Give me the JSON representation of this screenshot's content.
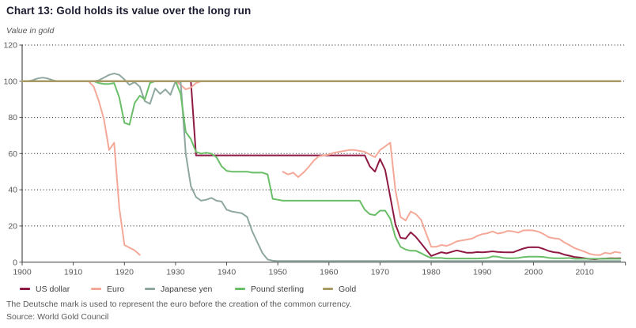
{
  "header": {
    "title": "Chart 13: Gold holds its value over the long run",
    "unit_label": "Value in gold"
  },
  "footnotes": {
    "note": "The Deutsche mark is used to represent the euro before the creation of the common currency.",
    "source": "Source: World Gold Council"
  },
  "chart_data": {
    "type": "line",
    "title": "Chart 13: Gold holds its value over the long run",
    "ylabel": "Value in gold",
    "xlabel": "",
    "x_start": 1900,
    "x_end": 2017,
    "axis_end_year": 2018,
    "xticks": [
      1900,
      1910,
      1920,
      1930,
      1940,
      1950,
      1960,
      1970,
      1980,
      1990,
      2000,
      2010
    ],
    "ylim": [
      0,
      120
    ],
    "ytick_step": 20,
    "grid": "dotted-horizontal",
    "legend_position": "bottom",
    "axis_color": "#4d4d4d",
    "grid_color": "#1a1a1a",
    "tick_label_color": "#595959",
    "series": [
      {
        "name": "US dollar",
        "color": "#8e1944",
        "width": 2,
        "values": [
          100,
          100,
          100,
          100,
          100,
          100,
          100,
          100,
          100,
          100,
          100,
          100,
          100,
          100,
          100,
          100,
          100,
          100,
          100,
          100,
          100,
          100,
          100,
          100,
          100,
          100,
          100,
          100,
          100,
          100,
          100,
          100,
          100,
          100,
          59,
          59,
          59,
          59,
          59,
          59,
          59,
          59,
          59,
          59,
          59,
          59,
          59,
          59,
          59,
          59,
          59,
          59,
          59,
          59,
          59,
          59,
          59,
          59,
          59,
          59,
          59,
          59,
          59,
          59,
          59,
          59,
          59,
          59,
          53,
          50,
          57,
          51,
          36,
          21,
          13.5,
          13,
          16.5,
          14,
          10.5,
          7,
          3.4,
          4.5,
          5.5,
          4.9,
          5.7,
          6.5,
          5.8,
          5.2,
          5.2,
          5.6,
          5.4,
          5.7,
          6,
          5.7,
          5.5,
          5.4,
          5.4,
          6.5,
          7.5,
          8.2,
          8.3,
          8.2,
          7.3,
          6.2,
          5.5,
          5.2,
          4.2,
          3.6,
          2.9,
          2.6,
          2.2,
          1.8,
          1.6,
          1.9,
          2,
          2.2,
          2.1,
          2.2
        ]
      },
      {
        "name": "Euro",
        "color": "#f4a898",
        "width": 2,
        "values": [
          100,
          100,
          100,
          100,
          100,
          100,
          100,
          100,
          100,
          100,
          100,
          100,
          100,
          100,
          97,
          89,
          79,
          62,
          66,
          30,
          9.5,
          8,
          6.5,
          4,
          null,
          null,
          100,
          100,
          100,
          100,
          100,
          98,
          95.5,
          96.5,
          99,
          100,
          100,
          100,
          100,
          100,
          100,
          100,
          100,
          100,
          null,
          null,
          null,
          null,
          null,
          null,
          null,
          50,
          48.5,
          49.5,
          47,
          49.5,
          52.5,
          56,
          58.5,
          59,
          59.5,
          60.5,
          61,
          61.5,
          62,
          62,
          61.5,
          61,
          59.5,
          58,
          62,
          64,
          66,
          40,
          25,
          23,
          28,
          26.5,
          23.5,
          16,
          8.5,
          8.5,
          9.5,
          9,
          10,
          11.5,
          12,
          12.5,
          13,
          14.5,
          15.5,
          16,
          17,
          15.8,
          16.3,
          17.3,
          17,
          16.3,
          17.5,
          17.7,
          17.5,
          16.8,
          15.5,
          13.8,
          13.2,
          12.9,
          11,
          9.5,
          7.8,
          6.8,
          5.8,
          4.6,
          4,
          3.9,
          5.2,
          4.7,
          5.7,
          5.2
        ]
      },
      {
        "name": "Japanese yen",
        "color": "#8ea7a1",
        "width": 2,
        "values": [
          100,
          100,
          100.5,
          101.5,
          102,
          101.5,
          100.5,
          100,
          100,
          100,
          100,
          100,
          100,
          100,
          100,
          100.5,
          102,
          103.5,
          104.3,
          103.5,
          101,
          98,
          99.5,
          97,
          89,
          87.5,
          96,
          93,
          95.5,
          92.5,
          100,
          99.5,
          60,
          42,
          36,
          34,
          34.5,
          35.5,
          34,
          33.5,
          29,
          28,
          27.5,
          27,
          25,
          17,
          11,
          5,
          1.5,
          0.8,
          0.6,
          0.6,
          0.6,
          0.6,
          0.6,
          0.6,
          0.6,
          0.6,
          0.6,
          0.6,
          0.6,
          0.6,
          0.6,
          0.6,
          0.6,
          0.6,
          0.6,
          0.6,
          0.6,
          0.6,
          0.6,
          0.6,
          0.6,
          0.6,
          0.6,
          0.6,
          0.6,
          0.6,
          0.6,
          0.6,
          0.6,
          0.6,
          0.6,
          0.6,
          0.6,
          0.6,
          0.6,
          0.6,
          0.6,
          0.6,
          0.6,
          0.6,
          0.6,
          0.6,
          0.6,
          0.6,
          0.6,
          0.6,
          0.6,
          0.6,
          0.6,
          0.6,
          0.6,
          0.6,
          0.6,
          0.6,
          0.6,
          0.6,
          0.6,
          0.6,
          0.6,
          0.6,
          0.6,
          0.6,
          0.6,
          0.6,
          0.6,
          0.6
        ]
      },
      {
        "name": "Pound sterling",
        "color": "#69be67",
        "width": 2,
        "values": [
          100,
          100,
          100,
          100,
          100,
          100,
          100,
          100,
          100,
          100,
          100,
          100,
          100,
          100,
          100,
          99,
          98.5,
          98.5,
          99,
          91,
          77,
          76,
          88,
          92,
          90,
          99,
          100,
          100,
          100,
          100,
          100,
          93,
          72,
          68,
          61,
          60,
          60.5,
          60,
          58,
          53,
          50.5,
          50,
          50,
          50,
          50,
          49.5,
          49.5,
          49.5,
          48.5,
          35,
          34.5,
          34,
          34,
          34,
          34,
          34,
          34,
          34,
          34,
          34,
          34,
          34,
          34,
          34,
          34,
          34,
          34,
          29,
          26.5,
          26,
          28.5,
          28.5,
          24,
          14,
          8.5,
          7,
          6.3,
          6.3,
          5,
          3.5,
          2.3,
          2.3,
          2.3,
          2,
          2,
          2,
          2,
          2,
          2,
          2,
          2.2,
          2.3,
          3.2,
          3,
          2.4,
          2.2,
          2.2,
          2.3,
          2.8,
          3,
          3,
          3,
          2.9,
          2.4,
          2.2,
          2.2,
          2.2,
          2.3,
          1.9,
          1.9,
          1.9,
          1.9,
          1.9,
          1.9,
          1.9,
          1.9,
          1.9,
          1.9
        ]
      },
      {
        "name": "Gold",
        "color": "#a89a62",
        "width": 2.5,
        "values": [
          100,
          100,
          100,
          100,
          100,
          100,
          100,
          100,
          100,
          100,
          100,
          100,
          100,
          100,
          100,
          100,
          100,
          100,
          100,
          100,
          100,
          100,
          100,
          100,
          100,
          100,
          100,
          100,
          100,
          100,
          100,
          100,
          100,
          100,
          100,
          100,
          100,
          100,
          100,
          100,
          100,
          100,
          100,
          100,
          100,
          100,
          100,
          100,
          100,
          100,
          100,
          100,
          100,
          100,
          100,
          100,
          100,
          100,
          100,
          100,
          100,
          100,
          100,
          100,
          100,
          100,
          100,
          100,
          100,
          100,
          100,
          100,
          100,
          100,
          100,
          100,
          100,
          100,
          100,
          100,
          100,
          100,
          100,
          100,
          100,
          100,
          100,
          100,
          100,
          100,
          100,
          100,
          100,
          100,
          100,
          100,
          100,
          100,
          100,
          100,
          100,
          100,
          100,
          100,
          100,
          100,
          100,
          100,
          100,
          100,
          100,
          100,
          100,
          100,
          100,
          100,
          100,
          100
        ]
      }
    ]
  }
}
